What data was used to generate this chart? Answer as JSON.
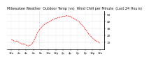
{
  "title": "Milwaukee Weather  Outdoor Temp (vs)  Wind Chill per Minute  (Last 24 Hours)",
  "line_color": "#ff0000",
  "background_color": "#ffffff",
  "grid_color": "#bbbbbb",
  "vline_color": "#aaaaaa",
  "y_values": [
    14,
    13,
    12,
    11,
    12,
    11,
    10,
    9,
    8,
    7,
    8,
    7,
    6,
    5,
    5,
    6,
    7,
    9,
    12,
    16,
    20,
    24,
    27,
    29,
    31,
    33,
    35,
    36,
    37,
    38,
    39,
    40,
    41,
    42,
    43,
    44,
    44,
    45,
    45,
    46,
    46,
    47,
    47,
    47,
    48,
    48,
    47,
    47,
    46,
    45,
    44,
    43,
    42,
    41,
    40,
    38,
    36,
    34,
    32,
    29,
    27,
    25,
    22,
    20,
    18,
    16,
    15,
    13,
    12,
    11,
    10,
    9
  ],
  "ylim": [
    0,
    55
  ],
  "yticks": [
    10,
    20,
    30,
    40,
    50
  ],
  "ytick_labels": [
    "10",
    "20",
    "30",
    "40",
    "50"
  ],
  "n_points": 72,
  "vline_x": 22,
  "title_fontsize": 3.5,
  "tick_fontsize": 3.0,
  "xtick_labels": [
    "12a",
    "2a",
    "4a",
    "6a",
    "8a",
    "10a",
    "12p",
    "2p",
    "4p",
    "6p",
    "8p",
    "10p",
    "12a"
  ]
}
